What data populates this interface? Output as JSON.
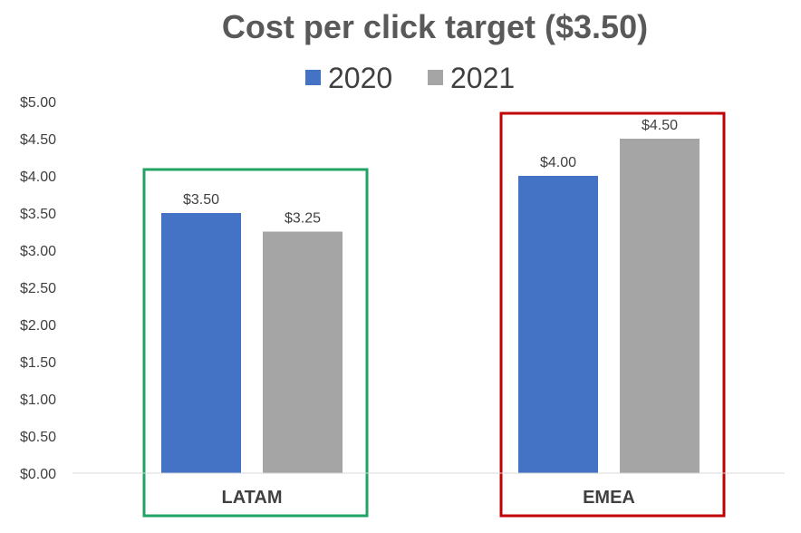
{
  "chart_data": {
    "type": "bar",
    "title": "Cost per click target ($3.50)",
    "xlabel": "",
    "ylabel": "",
    "categories": [
      "LATAM",
      "EMEA"
    ],
    "series": [
      {
        "name": "2020",
        "color": "#4472C4",
        "values": [
          3.5,
          4.0
        ],
        "labels": [
          "$3.50",
          "$4.00"
        ]
      },
      {
        "name": "2021",
        "color": "#A5A5A5",
        "values": [
          3.25,
          4.5
        ],
        "labels": [
          "$3.25",
          "$4.50"
        ]
      }
    ],
    "ylim": [
      0,
      5
    ],
    "yticks": [
      {
        "value": 0,
        "label": "$0.00"
      },
      {
        "value": 0.5,
        "label": "$0.50"
      },
      {
        "value": 1,
        "label": "$1.00"
      },
      {
        "value": 1.5,
        "label": "$1.50"
      },
      {
        "value": 2,
        "label": "$2.00"
      },
      {
        "value": 2.5,
        "label": "$2.50"
      },
      {
        "value": 3,
        "label": "$3.00"
      },
      {
        "value": 3.5,
        "label": "$3.50"
      },
      {
        "value": 4,
        "label": "$4.00"
      },
      {
        "value": 4.5,
        "label": "$4.50"
      },
      {
        "value": 5,
        "label": "$5.00"
      }
    ],
    "grid": false,
    "legend": "top-center",
    "highlights": [
      {
        "category": "LATAM",
        "color": "#21A366"
      },
      {
        "category": "EMEA",
        "color": "#C00000"
      }
    ]
  }
}
